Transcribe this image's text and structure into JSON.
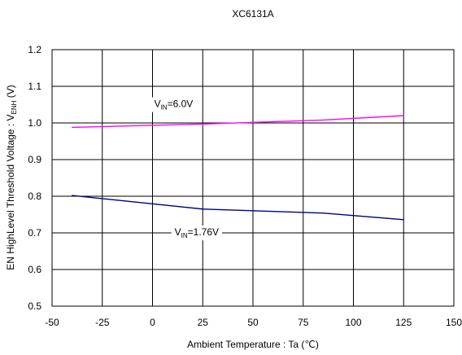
{
  "chart_data": {
    "type": "line",
    "title": "XC6131A",
    "xlabel": "Ambient Temperature : Ta (℃)",
    "ylabel": {
      "prefix": "EN HighLevel Threshold Voltage : V",
      "sub": "ENH",
      "suffix": " (V)"
    },
    "xlim": [
      -50,
      150
    ],
    "ylim": [
      0.5,
      1.2
    ],
    "x_ticks": [
      -50,
      -25,
      0,
      25,
      50,
      75,
      100,
      125,
      150
    ],
    "y_ticks": [
      0.5,
      0.6,
      0.7,
      0.8,
      0.9,
      1.0,
      1.1,
      1.2
    ],
    "grid": true,
    "series": [
      {
        "label_main": "V",
        "label_sub": "IN",
        "label_rest": "=6.0V",
        "color": "#ff00ff",
        "x": [
          -40,
          25,
          85,
          125
        ],
        "y": [
          0.988,
          0.997,
          1.008,
          1.02
        ]
      },
      {
        "label_main": "V",
        "label_sub": "IN",
        "label_rest": "=1.76V",
        "color": "#000080",
        "x": [
          -40,
          25,
          85,
          125
        ],
        "y": [
          0.802,
          0.765,
          0.754,
          0.736
        ]
      }
    ]
  }
}
